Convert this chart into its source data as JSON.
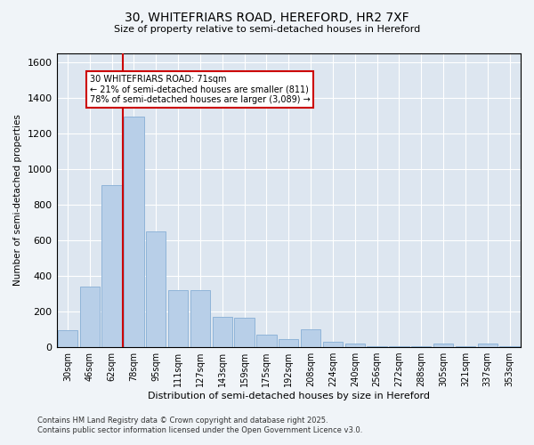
{
  "title_line1": "30, WHITEFRIARS ROAD, HEREFORD, HR2 7XF",
  "title_line2": "Size of property relative to semi-detached houses in Hereford",
  "xlabel": "Distribution of semi-detached houses by size in Hereford",
  "ylabel": "Number of semi-detached properties",
  "categories": [
    "30sqm",
    "46sqm",
    "62sqm",
    "78sqm",
    "95sqm",
    "111sqm",
    "127sqm",
    "143sqm",
    "159sqm",
    "175sqm",
    "192sqm",
    "208sqm",
    "224sqm",
    "240sqm",
    "256sqm",
    "272sqm",
    "288sqm",
    "305sqm",
    "321sqm",
    "337sqm",
    "353sqm"
  ],
  "values": [
    95,
    340,
    910,
    1295,
    650,
    320,
    320,
    170,
    165,
    70,
    45,
    100,
    30,
    22,
    5,
    5,
    3,
    18,
    3,
    18,
    3
  ],
  "bar_color": "#b8cfe8",
  "bar_edge_color": "#90b4d8",
  "vline_color": "#cc0000",
  "annotation_text": "30 WHITEFRIARS ROAD: 71sqm\n← 21% of semi-detached houses are smaller (811)\n78% of semi-detached houses are larger (3,089) →",
  "annotation_box_facecolor": "#ffffff",
  "annotation_box_edgecolor": "#cc0000",
  "ylim": [
    0,
    1650
  ],
  "yticks": [
    0,
    200,
    400,
    600,
    800,
    1000,
    1200,
    1400,
    1600
  ],
  "fig_facecolor": "#f0f4f8",
  "ax_facecolor": "#dde6f0",
  "grid_color": "#ffffff",
  "footer_line1": "Contains HM Land Registry data © Crown copyright and database right 2025.",
  "footer_line2": "Contains public sector information licensed under the Open Government Licence v3.0."
}
